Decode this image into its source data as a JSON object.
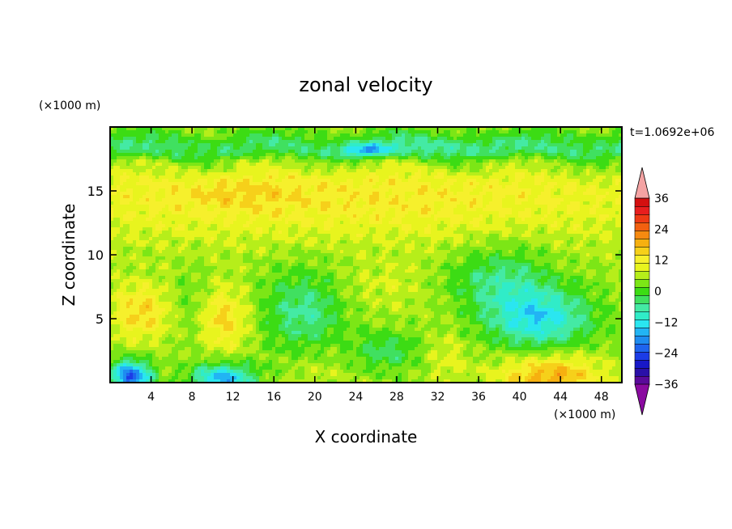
{
  "chart_data": {
    "type": "heatmap",
    "title": "zonal velocity",
    "xlabel": "X coordinate",
    "ylabel": "Z coordinate",
    "x_unit": "(×1000 m)",
    "z_unit": "(×1000 m)",
    "time_label": "t=1.0692e+06",
    "xlim": [
      0,
      50
    ],
    "zlim": [
      0,
      20
    ],
    "x_ticks": [
      4,
      8,
      12,
      16,
      20,
      24,
      28,
      32,
      36,
      40,
      44,
      48
    ],
    "z_ticks": [
      5,
      10,
      15
    ],
    "colorbar": {
      "levels": [
        -42,
        -39,
        -36,
        -33,
        -30,
        -27,
        -24,
        -21,
        -18,
        -15,
        -12,
        -9,
        -6,
        -3,
        0,
        3,
        6,
        9,
        12,
        15,
        18,
        21,
        24,
        27,
        30,
        33,
        36,
        39,
        42
      ],
      "tick_values": [
        -36,
        -24,
        -12,
        0,
        12,
        24,
        36
      ],
      "tick_labels": [
        "−36",
        "−24",
        "−12",
        "0",
        "12",
        "24",
        "36"
      ],
      "under_color": "#8a0aa0",
      "over_color": "#f4a3a3",
      "colors": [
        "#5a0a9a",
        "#2a10a8",
        "#1818c8",
        "#1c3ce6",
        "#1e64ee",
        "#1e8cf0",
        "#22b4f4",
        "#2ae6f0",
        "#30ecc8",
        "#44eaa4",
        "#40e060",
        "#3cdc14",
        "#7ce616",
        "#b6ee1a",
        "#e8f41e",
        "#f6f02c",
        "#f6d01a",
        "#f6b010",
        "#f68a10",
        "#f26010",
        "#ee3a14",
        "#e81e1e",
        "#d41010"
      ]
    },
    "features": [
      {
        "x": 22,
        "z": 14.6,
        "u": 8,
        "rx": 40,
        "rz": 3.5,
        "kind": "gauss"
      },
      {
        "x": 13,
        "z": 14.8,
        "u": 3,
        "rx": 5,
        "rz": 1.2,
        "kind": "gauss"
      },
      {
        "x": 42,
        "z": 5.0,
        "u": -16,
        "rx": 5,
        "rz": 2.5,
        "kind": "gauss"
      },
      {
        "x": 19,
        "z": 5.5,
        "u": -10,
        "rx": 4,
        "rz": 3.5,
        "kind": "gauss"
      },
      {
        "x": 8,
        "z": 6.0,
        "u": -4,
        "rx": 2,
        "rz": 3,
        "kind": "gauss"
      },
      {
        "x": 3,
        "z": 5.5,
        "u": 10,
        "rx": 3,
        "rz": 2.2,
        "kind": "gauss"
      },
      {
        "x": 11,
        "z": 5.0,
        "u": 10,
        "rx": 2.5,
        "rz": 2.5,
        "kind": "gauss"
      },
      {
        "x": 27,
        "z": 7.5,
        "u": 3,
        "rx": 6,
        "rz": 2,
        "kind": "gauss"
      },
      {
        "x": 35,
        "z": 8.0,
        "u": -4,
        "rx": 4,
        "rz": 2,
        "kind": "gauss"
      },
      {
        "x": 39,
        "z": 8.0,
        "u": -7,
        "rx": 4,
        "rz": 3,
        "kind": "gauss"
      },
      {
        "x": 2,
        "z": 0.5,
        "u": -26,
        "rx": 2,
        "rz": 1.2,
        "kind": "gauss"
      },
      {
        "x": 11,
        "z": 0.3,
        "u": -20,
        "rx": 3,
        "rz": 1.2,
        "kind": "gauss"
      },
      {
        "x": 43,
        "z": 0.5,
        "u": 14,
        "rx": 5,
        "rz": 1.8,
        "kind": "gauss"
      },
      {
        "x": 20,
        "z": 1.0,
        "u": 3,
        "rx": 3,
        "rz": 2.5,
        "kind": "gauss"
      },
      {
        "x": 27,
        "z": 2.5,
        "u": -8,
        "rx": 3,
        "rz": 1.5,
        "kind": "gauss"
      },
      {
        "x": 33,
        "z": 2.0,
        "u": 4,
        "rx": 2,
        "rz": 2,
        "kind": "gauss"
      },
      {
        "x": 32,
        "z": 18.5,
        "u": -3,
        "rx": 6,
        "rz": 1,
        "kind": "gauss"
      },
      {
        "x": 25,
        "z": 18.2,
        "u": -14,
        "rx": 2.5,
        "rz": 0.5,
        "kind": "gauss"
      }
    ]
  }
}
